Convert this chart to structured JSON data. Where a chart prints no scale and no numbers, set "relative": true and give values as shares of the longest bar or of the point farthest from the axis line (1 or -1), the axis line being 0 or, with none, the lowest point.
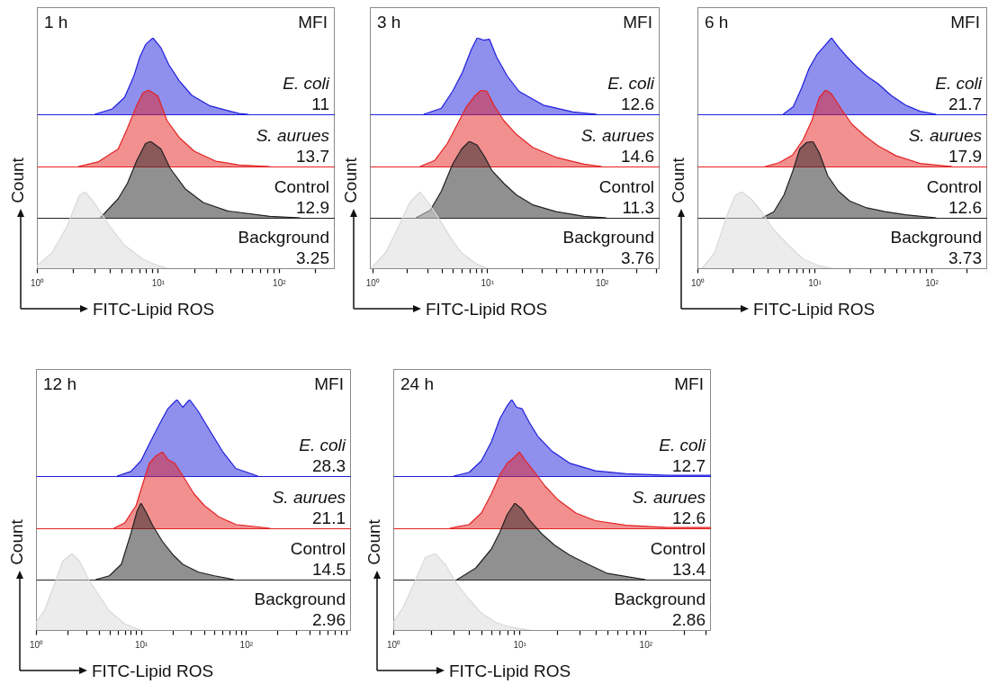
{
  "chart_data": [
    {
      "type": "area",
      "title": "1 h",
      "annotations": [
        "MFI",
        "E. coli",
        "11"
      ],
      "relative": true,
      "log": "x",
      "tick_labels": false,
      "xlim": [
        1,
        290
      ],
      "x": [
        3.0,
        4.2,
        5.3,
        6.3,
        7.1,
        7.9,
        9.1,
        10.6,
        12.3,
        15,
        19,
        27,
        47,
        56
      ],
      "series": [
        {
          "color": "#1f1fdd",
          "values": [
            0,
            0.07,
            0.22,
            0.49,
            0.75,
            0.91,
            1,
            0.87,
            0.65,
            0.44,
            0.25,
            0.11,
            0.01,
            0
          ]
        }
      ]
    },
    {
      "type": "area",
      "annotations": [
        "S. aurues",
        "13.7"
      ],
      "relative": true,
      "log": "x",
      "tick_labels": false,
      "xlim": [
        1,
        290
      ],
      "x": [
        2.2,
        3.2,
        4.7,
        5.6,
        6.7,
        7.5,
        8.4,
        10,
        11.9,
        15,
        20,
        30,
        47,
        84
      ],
      "series": [
        {
          "color": "#e52222",
          "values": [
            0,
            0.06,
            0.23,
            0.5,
            0.8,
            0.96,
            1,
            0.92,
            0.6,
            0.38,
            0.2,
            0.07,
            0.02,
            0
          ]
        }
      ]
    },
    {
      "type": "area",
      "annotations": [
        "Control",
        "12.9"
      ],
      "relative": true,
      "log": "x",
      "tick_labels": false,
      "xlim": [
        1,
        290
      ],
      "x": [
        3.35,
        4.7,
        5.6,
        6.7,
        7.9,
        8.7,
        10.6,
        12.6,
        16.8,
        23.7,
        37.6,
        84,
        150
      ],
      "series": [
        {
          "color": "#222222",
          "values": [
            0,
            0.25,
            0.45,
            0.75,
            0.97,
            1,
            0.9,
            0.65,
            0.38,
            0.2,
            0.09,
            0.02,
            0
          ]
        }
      ]
    },
    {
      "type": "area",
      "annotations": [
        "Background",
        "3.25"
      ],
      "ylabel": "Count",
      "xlabel": "FITC-Lipid ROS",
      "relative": true,
      "log": "x",
      "tick_labels": "x",
      "xlim": [
        1,
        290
      ],
      "xticks": [
        {
          "value": 1,
          "label": "10⁰"
        },
        {
          "value": 2,
          "label": null
        },
        {
          "value": 3,
          "label": null
        },
        {
          "value": 4,
          "label": null
        },
        {
          "value": 5,
          "label": null
        },
        {
          "value": 6,
          "label": null
        },
        {
          "value": 7,
          "label": null
        },
        {
          "value": 8,
          "label": null
        },
        {
          "value": 9,
          "label": null
        },
        {
          "value": 10,
          "label": "10¹"
        },
        {
          "value": 20,
          "label": null
        },
        {
          "value": 30,
          "label": null
        },
        {
          "value": 40,
          "label": null
        },
        {
          "value": 50,
          "label": null
        },
        {
          "value": 60,
          "label": null
        },
        {
          "value": 70,
          "label": null
        },
        {
          "value": 80,
          "label": null
        },
        {
          "value": 90,
          "label": null
        },
        {
          "value": 100,
          "label": "10²"
        },
        {
          "value": 200,
          "label": null
        }
      ],
      "x": [
        1.0,
        1.33,
        1.78,
        2.24,
        2.5,
        3.0,
        4.0,
        5.3,
        7.5,
        9.4,
        11.9
      ],
      "series": [
        {
          "color": "#d9d9d9",
          "values": [
            0.03,
            0.2,
            0.55,
            0.95,
            1,
            0.85,
            0.55,
            0.3,
            0.12,
            0.05,
            0
          ]
        }
      ]
    },
    {
      "type": "area",
      "title": "3 h",
      "annotations": [
        "MFI",
        "E. coli",
        "12.6"
      ],
      "relative": true,
      "log": "x",
      "tick_labels": false,
      "xlim": [
        0.95,
        320
      ],
      "x": [
        2.8,
        4.0,
        5.0,
        6.1,
        7.3,
        8.2,
        9.3,
        10.5,
        12.1,
        15,
        19,
        31,
        56,
        91
      ],
      "series": [
        {
          "color": "#1f1fdd",
          "values": [
            0,
            0.08,
            0.3,
            0.55,
            0.85,
            1,
            0.97,
            0.98,
            0.75,
            0.5,
            0.3,
            0.12,
            0.03,
            0
          ]
        }
      ]
    },
    {
      "type": "area",
      "annotations": [
        "S. aurues",
        "14.6"
      ],
      "relative": true,
      "log": "x",
      "tick_labels": false,
      "xlim": [
        0.95,
        320
      ],
      "x": [
        2.6,
        3.5,
        4.5,
        5.5,
        6.6,
        7.8,
        8.9,
        10,
        11.5,
        14,
        18,
        25,
        40,
        70,
        100
      ],
      "series": [
        {
          "color": "#e52222",
          "values": [
            0,
            0.08,
            0.3,
            0.55,
            0.78,
            0.92,
            1,
            0.98,
            0.8,
            0.6,
            0.42,
            0.25,
            0.12,
            0.03,
            0
          ]
        }
      ]
    },
    {
      "type": "area",
      "annotations": [
        "Control",
        "11.3"
      ],
      "relative": true,
      "log": "x",
      "tick_labels": false,
      "xlim": [
        0.95,
        320
      ],
      "x": [
        2.4,
        3.2,
        4.0,
        5.0,
        6.0,
        7.0,
        8.2,
        9.5,
        11,
        14,
        18,
        25,
        40,
        70,
        110
      ],
      "series": [
        {
          "color": "#222222",
          "values": [
            0,
            0.1,
            0.35,
            0.7,
            0.9,
            1,
            0.95,
            0.8,
            0.62,
            0.45,
            0.3,
            0.17,
            0.08,
            0.02,
            0
          ]
        }
      ]
    },
    {
      "type": "area",
      "annotations": [
        "Background",
        "3.76"
      ],
      "ylabel": "Count",
      "xlabel": "FITC-Lipid ROS",
      "relative": true,
      "log": "x",
      "tick_labels": "x",
      "xlim": [
        0.95,
        320
      ],
      "xticks": [
        {
          "value": 1,
          "label": "10⁰"
        },
        {
          "value": 2,
          "label": null
        },
        {
          "value": 3,
          "label": null
        },
        {
          "value": 4,
          "label": null
        },
        {
          "value": 5,
          "label": null
        },
        {
          "value": 6,
          "label": null
        },
        {
          "value": 7,
          "label": null
        },
        {
          "value": 8,
          "label": null
        },
        {
          "value": 9,
          "label": null
        },
        {
          "value": 10,
          "label": "10¹"
        },
        {
          "value": 20,
          "label": null
        },
        {
          "value": 30,
          "label": null
        },
        {
          "value": 40,
          "label": null
        },
        {
          "value": 50,
          "label": null
        },
        {
          "value": 60,
          "label": null
        },
        {
          "value": 70,
          "label": null
        },
        {
          "value": 80,
          "label": null
        },
        {
          "value": 90,
          "label": null
        },
        {
          "value": 100,
          "label": "10²"
        },
        {
          "value": 200,
          "label": null
        },
        {
          "value": 300,
          "label": null
        }
      ],
      "x": [
        1.0,
        1.3,
        1.7,
        2.1,
        2.6,
        3.1,
        3.8,
        4.8,
        6,
        8,
        10
      ],
      "series": [
        {
          "color": "#d9d9d9",
          "values": [
            0.02,
            0.2,
            0.55,
            0.85,
            1,
            0.85,
            0.65,
            0.4,
            0.2,
            0.06,
            0
          ]
        }
      ]
    },
    {
      "type": "area",
      "title": "6 h",
      "annotations": [
        "MFI",
        "E. coli",
        "21.7"
      ],
      "relative": true,
      "log": "x",
      "tick_labels": false,
      "xlim": [
        1,
        300
      ],
      "x": [
        5.4,
        6.6,
        7.8,
        9,
        10.5,
        12,
        14,
        16,
        19,
        23,
        28,
        35,
        45,
        60,
        80,
        110
      ],
      "series": [
        {
          "color": "#1f1fdd",
          "values": [
            0,
            0.1,
            0.35,
            0.6,
            0.78,
            0.88,
            1,
            0.88,
            0.75,
            0.62,
            0.5,
            0.4,
            0.25,
            0.12,
            0.04,
            0
          ]
        }
      ]
    },
    {
      "type": "area",
      "annotations": [
        "S. aurues",
        "17.9"
      ],
      "relative": true,
      "log": "x",
      "tick_labels": false,
      "xlim": [
        1,
        300
      ],
      "x": [
        3.8,
        5,
        6.5,
        8,
        9.5,
        11,
        12.5,
        14,
        17,
        21,
        27,
        35,
        50,
        80,
        150
      ],
      "series": [
        {
          "color": "#e52222",
          "values": [
            0,
            0.05,
            0.15,
            0.35,
            0.6,
            0.9,
            1,
            0.95,
            0.75,
            0.55,
            0.4,
            0.27,
            0.14,
            0.04,
            0
          ]
        }
      ]
    },
    {
      "type": "area",
      "annotations": [
        "Control",
        "12.6"
      ],
      "relative": true,
      "log": "x",
      "tick_labels": false,
      "xlim": [
        1,
        300
      ],
      "x": [
        3.6,
        4.5,
        5.5,
        6.5,
        7.5,
        8.5,
        9.7,
        11,
        13,
        16,
        20,
        28,
        40,
        60,
        110
      ],
      "series": [
        {
          "color": "#222222",
          "values": [
            0,
            0.08,
            0.3,
            0.6,
            0.9,
            0.98,
            1,
            0.85,
            0.55,
            0.35,
            0.22,
            0.13,
            0.08,
            0.04,
            0
          ]
        }
      ]
    },
    {
      "type": "area",
      "annotations": [
        "Background",
        "3.73"
      ],
      "ylabel": "Count",
      "xlabel": "FITC-Lipid ROS",
      "relative": true,
      "log": "x",
      "tick_labels": "x",
      "xlim": [
        1,
        300
      ],
      "xticks": [
        {
          "value": 1,
          "label": "10⁰"
        },
        {
          "value": 2,
          "label": null
        },
        {
          "value": 3,
          "label": null
        },
        {
          "value": 4,
          "label": null
        },
        {
          "value": 5,
          "label": null
        },
        {
          "value": 6,
          "label": null
        },
        {
          "value": 7,
          "label": null
        },
        {
          "value": 8,
          "label": null
        },
        {
          "value": 9,
          "label": null
        },
        {
          "value": 10,
          "label": "10¹"
        },
        {
          "value": 20,
          "label": null
        },
        {
          "value": 30,
          "label": null
        },
        {
          "value": 40,
          "label": null
        },
        {
          "value": 50,
          "label": null
        },
        {
          "value": 60,
          "label": null
        },
        {
          "value": 70,
          "label": null
        },
        {
          "value": 80,
          "label": null
        },
        {
          "value": 90,
          "label": null
        },
        {
          "value": 100,
          "label": "10²"
        },
        {
          "value": 200,
          "label": null
        },
        {
          "value": 300,
          "label": null
        }
      ],
      "x": [
        1.1,
        1.4,
        1.8,
        2.1,
        2.4,
        2.9,
        3.5,
        4.5,
        6,
        8,
        11,
        14
      ],
      "series": [
        {
          "color": "#d9d9d9",
          "values": [
            0,
            0.2,
            0.7,
            0.95,
            1,
            0.9,
            0.75,
            0.5,
            0.3,
            0.12,
            0.03,
            0
          ]
        }
      ]
    },
    {
      "type": "area",
      "title": "12 h",
      "annotations": [
        "MFI",
        "E. coli",
        "28.3"
      ],
      "relative": true,
      "log": "x",
      "tick_labels": false,
      "xlim": [
        1,
        1000
      ],
      "x": [
        5.9,
        8,
        10,
        12,
        15,
        18,
        22,
        25,
        29,
        35,
        45,
        60,
        80,
        130
      ],
      "series": [
        {
          "color": "#1f1fdd",
          "values": [
            0,
            0.06,
            0.2,
            0.42,
            0.68,
            0.88,
            1,
            0.9,
            1,
            0.85,
            0.6,
            0.32,
            0.1,
            0
          ]
        }
      ]
    },
    {
      "type": "area",
      "annotations": [
        "S. aurues",
        "21.1"
      ],
      "relative": true,
      "log": "x",
      "tick_labels": false,
      "xlim": [
        1,
        1000
      ],
      "x": [
        5.5,
        7,
        9,
        10.5,
        12,
        14,
        16,
        18,
        21,
        26,
        32,
        40,
        55,
        80,
        170
      ],
      "series": [
        {
          "color": "#e52222",
          "values": [
            0,
            0.07,
            0.3,
            0.6,
            0.85,
            0.95,
            1,
            0.9,
            0.85,
            0.65,
            0.45,
            0.3,
            0.15,
            0.05,
            0
          ]
        }
      ]
    },
    {
      "type": "area",
      "annotations": [
        "Control",
        "14.5"
      ],
      "relative": true,
      "log": "x",
      "tick_labels": false,
      "xlim": [
        1,
        1000
      ],
      "x": [
        3.7,
        5,
        6.5,
        8,
        9.2,
        10,
        11,
        13,
        16,
        20,
        25,
        35,
        50,
        77
      ],
      "series": [
        {
          "color": "#222222",
          "values": [
            0,
            0.05,
            0.2,
            0.6,
            0.9,
            1,
            0.9,
            0.7,
            0.5,
            0.33,
            0.2,
            0.1,
            0.05,
            0
          ]
        }
      ]
    },
    {
      "type": "area",
      "annotations": [
        "Background",
        "2.96"
      ],
      "ylabel": "Count",
      "xlabel": "FITC-Lipid ROS",
      "relative": true,
      "log": "x",
      "tick_labels": "x",
      "xlim": [
        1,
        1000
      ],
      "xticks": [
        {
          "value": 1,
          "label": "10⁰"
        },
        {
          "value": 2,
          "label": null
        },
        {
          "value": 3,
          "label": null
        },
        {
          "value": 4,
          "label": null
        },
        {
          "value": 5,
          "label": null
        },
        {
          "value": 6,
          "label": null
        },
        {
          "value": 7,
          "label": null
        },
        {
          "value": 8,
          "label": null
        },
        {
          "value": 9,
          "label": null
        },
        {
          "value": 10,
          "label": "10¹"
        },
        {
          "value": 20,
          "label": null
        },
        {
          "value": 30,
          "label": null
        },
        {
          "value": 40,
          "label": null
        },
        {
          "value": 50,
          "label": null
        },
        {
          "value": 60,
          "label": null
        },
        {
          "value": 70,
          "label": null
        },
        {
          "value": 80,
          "label": null
        },
        {
          "value": 90,
          "label": null
        },
        {
          "value": 100,
          "label": "10²"
        },
        {
          "value": 200,
          "label": null
        },
        {
          "value": 300,
          "label": null
        },
        {
          "value": 400,
          "label": null
        },
        {
          "value": 500,
          "label": null
        },
        {
          "value": 600,
          "label": null
        },
        {
          "value": 700,
          "label": null
        },
        {
          "value": 800,
          "label": null
        },
        {
          "value": 900,
          "label": null
        }
      ],
      "x": [
        1,
        1.2,
        1.5,
        1.8,
        2.2,
        2.6,
        3.2,
        4,
        5,
        7,
        9,
        10
      ],
      "series": [
        {
          "color": "#d9d9d9",
          "values": [
            0.1,
            0.25,
            0.6,
            0.9,
            1,
            0.9,
            0.65,
            0.45,
            0.25,
            0.08,
            0.02,
            0
          ]
        }
      ]
    },
    {
      "type": "area",
      "title": "24 h",
      "annotations": [
        "MFI",
        "E. coli",
        "12.7"
      ],
      "relative": true,
      "log": "x",
      "tick_labels": false,
      "xlim": [
        1,
        330
      ],
      "x": [
        3,
        4,
        5,
        6,
        7,
        8,
        8.7,
        9.5,
        10.5,
        12,
        14,
        18,
        25,
        40,
        70,
        150,
        330
      ],
      "series": [
        {
          "color": "#1f1fdd",
          "values": [
            0,
            0.05,
            0.2,
            0.45,
            0.75,
            0.92,
            1,
            0.9,
            0.88,
            0.7,
            0.52,
            0.33,
            0.17,
            0.07,
            0.03,
            0.01,
            0.01
          ]
        }
      ]
    },
    {
      "type": "area",
      "annotations": [
        "S. aurues",
        "12.6"
      ],
      "relative": true,
      "log": "x",
      "tick_labels": false,
      "xlim": [
        1,
        330
      ],
      "x": [
        2.8,
        4,
        5,
        6,
        7,
        8,
        9,
        10,
        11,
        13,
        16,
        20,
        28,
        40,
        70,
        150,
        330
      ],
      "series": [
        {
          "color": "#e52222",
          "values": [
            0,
            0.05,
            0.2,
            0.45,
            0.7,
            0.85,
            0.92,
            1,
            0.9,
            0.75,
            0.55,
            0.38,
            0.2,
            0.1,
            0.04,
            0.01,
            0.01
          ]
        }
      ]
    },
    {
      "type": "area",
      "annotations": [
        "Control",
        "13.4"
      ],
      "relative": true,
      "log": "x",
      "tick_labels": false,
      "xlim": [
        1,
        330
      ],
      "x": [
        3.2,
        4.5,
        6,
        7,
        8,
        9.2,
        10.5,
        12,
        15,
        19,
        25,
        35,
        50,
        100
      ],
      "series": [
        {
          "color": "#222222",
          "values": [
            0,
            0.15,
            0.4,
            0.62,
            0.85,
            1,
            0.92,
            0.78,
            0.6,
            0.45,
            0.32,
            0.2,
            0.08,
            0
          ]
        }
      ]
    },
    {
      "type": "area",
      "annotations": [
        "Background",
        "2.86"
      ],
      "ylabel": "Count",
      "xlabel": "FITC-Lipid ROS",
      "relative": true,
      "log": "x",
      "tick_labels": "x",
      "xlim": [
        1,
        330
      ],
      "xticks": [
        {
          "value": 1,
          "label": "10⁰"
        },
        {
          "value": 2,
          "label": null
        },
        {
          "value": 3,
          "label": null
        },
        {
          "value": 4,
          "label": null
        },
        {
          "value": 5,
          "label": null
        },
        {
          "value": 6,
          "label": null
        },
        {
          "value": 7,
          "label": null
        },
        {
          "value": 8,
          "label": null
        },
        {
          "value": 9,
          "label": null
        },
        {
          "value": 10,
          "label": "10¹"
        },
        {
          "value": 20,
          "label": null
        },
        {
          "value": 30,
          "label": null
        },
        {
          "value": 40,
          "label": null
        },
        {
          "value": 50,
          "label": null
        },
        {
          "value": 60,
          "label": null
        },
        {
          "value": 70,
          "label": null
        },
        {
          "value": 80,
          "label": null
        },
        {
          "value": 90,
          "label": null
        },
        {
          "value": 100,
          "label": "10²"
        },
        {
          "value": 200,
          "label": null
        },
        {
          "value": 300,
          "label": null
        }
      ],
      "x": [
        1,
        1.2,
        1.5,
        1.8,
        2.15,
        2.6,
        3.2,
        4,
        5,
        6.5,
        8,
        10,
        12
      ],
      "series": [
        {
          "color": "#d9d9d9",
          "values": [
            0.1,
            0.3,
            0.65,
            0.95,
            1,
            0.85,
            0.6,
            0.4,
            0.22,
            0.1,
            0.05,
            0.02,
            0
          ]
        }
      ]
    }
  ]
}
